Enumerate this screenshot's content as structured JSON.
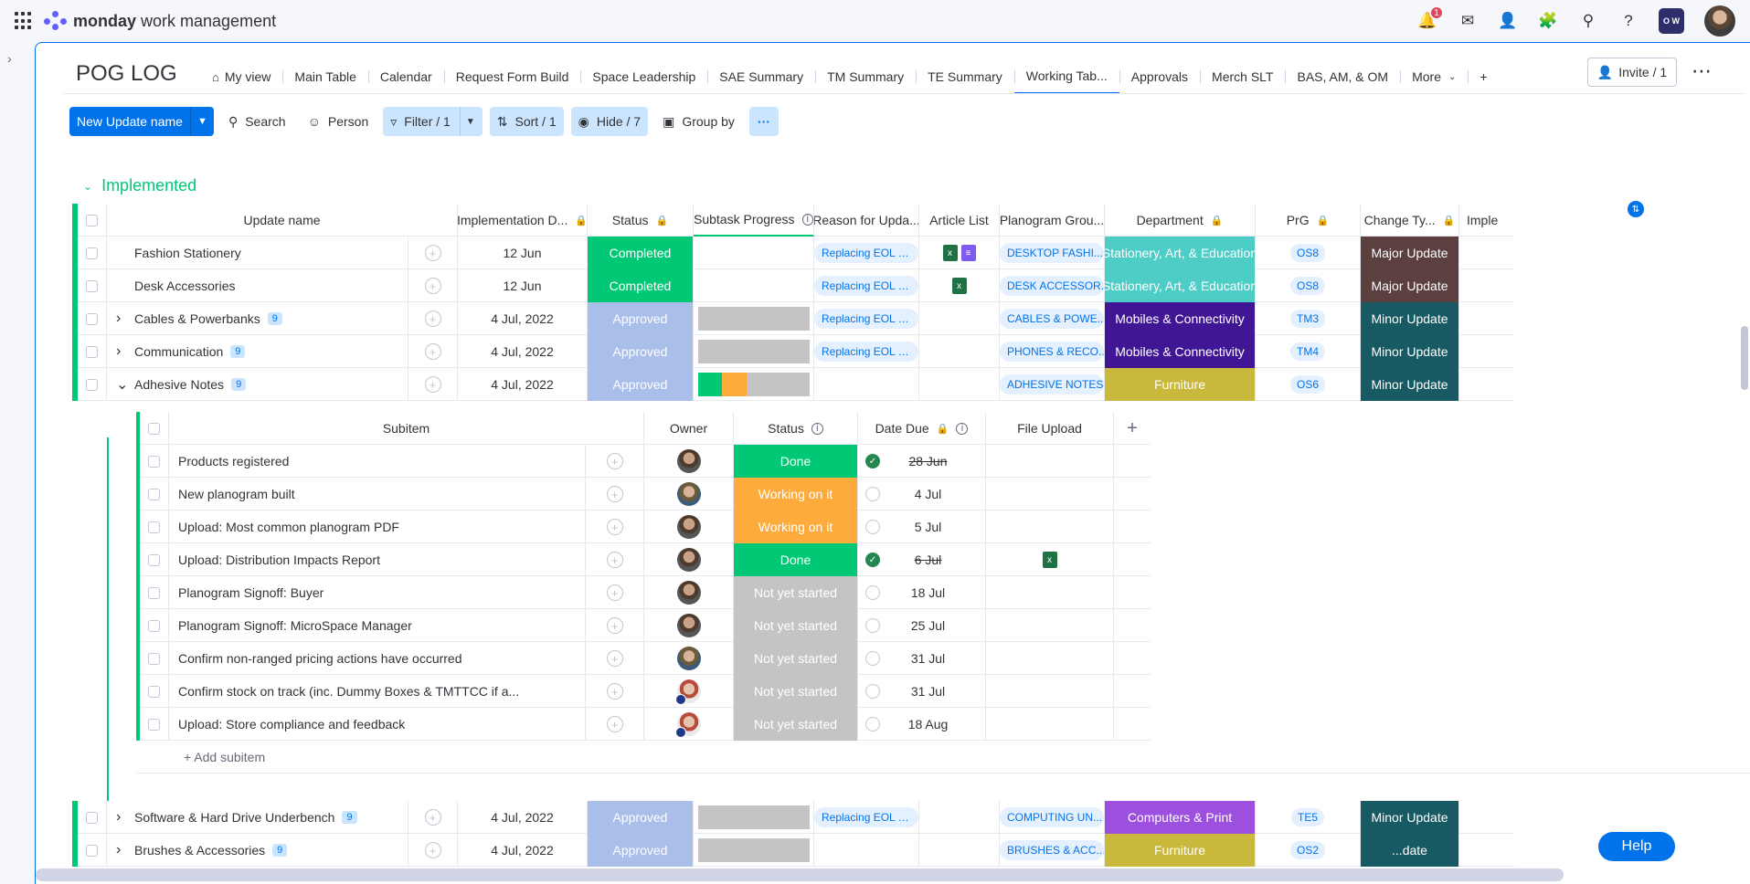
{
  "app": {
    "brand_bold": "monday",
    "brand_rest": " work management",
    "notification_count": "1",
    "workspace_initials": "O W"
  },
  "board": {
    "title": "POG LOG",
    "invite_label": "Invite / 1"
  },
  "tabs": [
    {
      "label": "My view",
      "icon": "home-icon"
    },
    {
      "label": "Main Table"
    },
    {
      "label": "Calendar"
    },
    {
      "label": "Request Form Build"
    },
    {
      "label": "Space Leadership"
    },
    {
      "label": "SAE Summary"
    },
    {
      "label": "TM Summary"
    },
    {
      "label": "TE Summary"
    },
    {
      "label": "Working Tab..."
    },
    {
      "label": "Approvals"
    },
    {
      "label": "Merch SLT"
    },
    {
      "label": "BAS, AM, & OM"
    },
    {
      "label": "More"
    },
    {
      "label": "+"
    }
  ],
  "toolbar": {
    "new_item": "New Update name",
    "search": "Search",
    "person": "Person",
    "filter": "Filter / 1",
    "sort": "Sort / 1",
    "hide": "Hide / 7",
    "group_by": "Group by"
  },
  "group": {
    "title": "Implemented",
    "color": "#00c875",
    "columns": [
      "Update name",
      "Implementation D...",
      "Status",
      "Subtask Progress",
      "Reason for Upda...",
      "Article List",
      "Planogram Grou...",
      "Department",
      "PrG",
      "Change Ty...",
      "Imple"
    ],
    "rows": [
      {
        "name": "Fashion Stationery",
        "count": "",
        "date": "12 Jun",
        "status": "Completed",
        "status_color": "#00c875",
        "reason": "Replacing EOL pr...",
        "files": [
          "x",
          "doc"
        ],
        "planogram": "DESKTOP FASHI...",
        "dept": "Stationery, Art, & Education",
        "dept_color": "#4eccc6",
        "prg": "OS8",
        "change": "Major Update",
        "change_color": "#5c3f3f"
      },
      {
        "name": "Desk Accessories",
        "count": "",
        "date": "12 Jun",
        "status": "Completed",
        "status_color": "#00c875",
        "reason": "Replacing EOL pr...",
        "files": [
          "x"
        ],
        "planogram": "DESK ACCESSOR...",
        "dept": "Stationery, Art, & Education",
        "dept_color": "#4eccc6",
        "prg": "OS8",
        "change": "Major Update",
        "change_color": "#5c3f3f"
      },
      {
        "name": "Cables & Powerbanks",
        "count": "9",
        "date": "4 Jul, 2022",
        "status": "Approved",
        "status_color": "#a9bee8",
        "reason": "Replacing EOL pr...",
        "files": [],
        "planogram": "CABLES & POWE...",
        "dept": "Mobiles & Connectivity",
        "dept_color": "#401694",
        "prg": "TM3",
        "change": "Minor Update",
        "change_color": "#175a63"
      },
      {
        "name": "Communication",
        "count": "9",
        "date": "4 Jul, 2022",
        "status": "Approved",
        "status_color": "#a9bee8",
        "reason": "Replacing EOL pr...",
        "files": [],
        "planogram": "PHONES & RECO...",
        "dept": "Mobiles & Connectivity",
        "dept_color": "#401694",
        "prg": "TM4",
        "change": "Minor Update",
        "change_color": "#175a63"
      },
      {
        "name": "Adhesive Notes",
        "count": "9",
        "date": "4 Jul, 2022",
        "status": "Approved",
        "status_color": "#a9bee8",
        "reason": "",
        "files": [],
        "planogram": "ADHESIVE NOTES",
        "dept": "Furniture",
        "dept_color": "#c9b83c",
        "prg": "OS6",
        "change": "Minor Update",
        "change_color": "#175a63"
      }
    ],
    "rows_after": [
      {
        "name": "Software & Hard Drive Underbench",
        "count": "9",
        "date": "4 Jul, 2022",
        "status": "Approved",
        "status_color": "#a9bee8",
        "reason": "Replacing EOL pr...",
        "planogram": "COMPUTING UN...",
        "dept": "Computers & Print",
        "dept_color": "#9d50dd",
        "prg": "TE5",
        "change": "Minor Update",
        "change_color": "#175a63"
      },
      {
        "name": "Brushes & Accessories",
        "count": "9",
        "date": "4 Jul, 2022",
        "status": "Approved",
        "status_color": "#a9bee8",
        "reason": "",
        "planogram": "BRUSHES & ACC...",
        "dept": "Furniture",
        "dept_color": "#c9b83c",
        "prg": "OS2",
        "change": "...date",
        "change_color": "#175a63"
      }
    ]
  },
  "subitems": {
    "columns": [
      "Subitem",
      "Owner",
      "Status",
      "Date Due",
      "File Upload",
      "+"
    ],
    "add_label": "+ Add subitem",
    "rows": [
      {
        "name": "Products registered",
        "owner": "a",
        "status": "Done",
        "status_color": "#00c875",
        "done": true,
        "date": "28 Jun",
        "file": false
      },
      {
        "name": "New planogram built",
        "owner": "b",
        "status": "Working on it",
        "status_color": "#fdab3d",
        "done": false,
        "date": "4 Jul",
        "file": false
      },
      {
        "name": "Upload: Most common planogram PDF",
        "owner": "a",
        "status": "Working on it",
        "status_color": "#fdab3d",
        "done": false,
        "date": "5 Jul",
        "file": false
      },
      {
        "name": "Upload: Distribution Impacts Report",
        "owner": "a",
        "status": "Done",
        "status_color": "#00c875",
        "done": true,
        "date": "6 Jul",
        "file": true
      },
      {
        "name": "Planogram Signoff: Buyer",
        "owner": "a",
        "status": "Not yet started",
        "status_color": "#c4c4c4",
        "done": false,
        "date": "18 Jul",
        "file": false
      },
      {
        "name": "Planogram Signoff: MicroSpace Manager",
        "owner": "a",
        "status": "Not yet started",
        "status_color": "#c4c4c4",
        "done": false,
        "date": "25 Jul",
        "file": false
      },
      {
        "name": "Confirm non-ranged pricing actions have occurred",
        "owner": "b",
        "status": "Not yet started",
        "status_color": "#c4c4c4",
        "done": false,
        "date": "31 Jul",
        "file": false
      },
      {
        "name": "Confirm stock on track (inc. Dummy Boxes & TMTTCC if a...",
        "owner": "c",
        "status": "Not yet started",
        "status_color": "#c4c4c4",
        "done": false,
        "date": "31 Jul",
        "file": false
      },
      {
        "name": "Upload: Store compliance and feedback",
        "owner": "c",
        "status": "Not yet started",
        "status_color": "#c4c4c4",
        "done": false,
        "date": "18 Aug",
        "file": false
      }
    ]
  },
  "help": "Help"
}
